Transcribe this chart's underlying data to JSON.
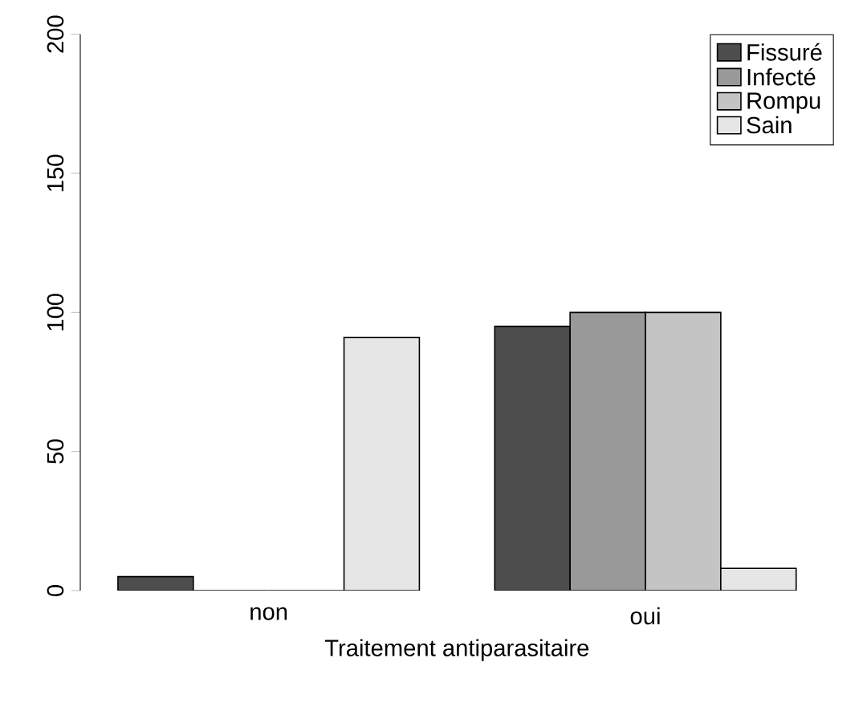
{
  "chart_data": {
    "type": "bar",
    "xlabel": "Traitement antiparasitaire",
    "categories": [
      "non",
      "oui"
    ],
    "series": [
      {
        "name": "Fissuré",
        "color": "#4d4d4d",
        "values": [
          5,
          95
        ]
      },
      {
        "name": "Infecté",
        "color": "#999999",
        "values": [
          0,
          100
        ]
      },
      {
        "name": "Rompu",
        "color": "#c4c4c4",
        "values": [
          0,
          100
        ]
      },
      {
        "name": "Sain",
        "color": "#e6e6e6",
        "values": [
          91,
          8
        ]
      }
    ],
    "ylim": [
      0,
      200
    ],
    "yticks": [
      0,
      50,
      100,
      150,
      200
    ],
    "grid": false,
    "legend": "top right"
  }
}
